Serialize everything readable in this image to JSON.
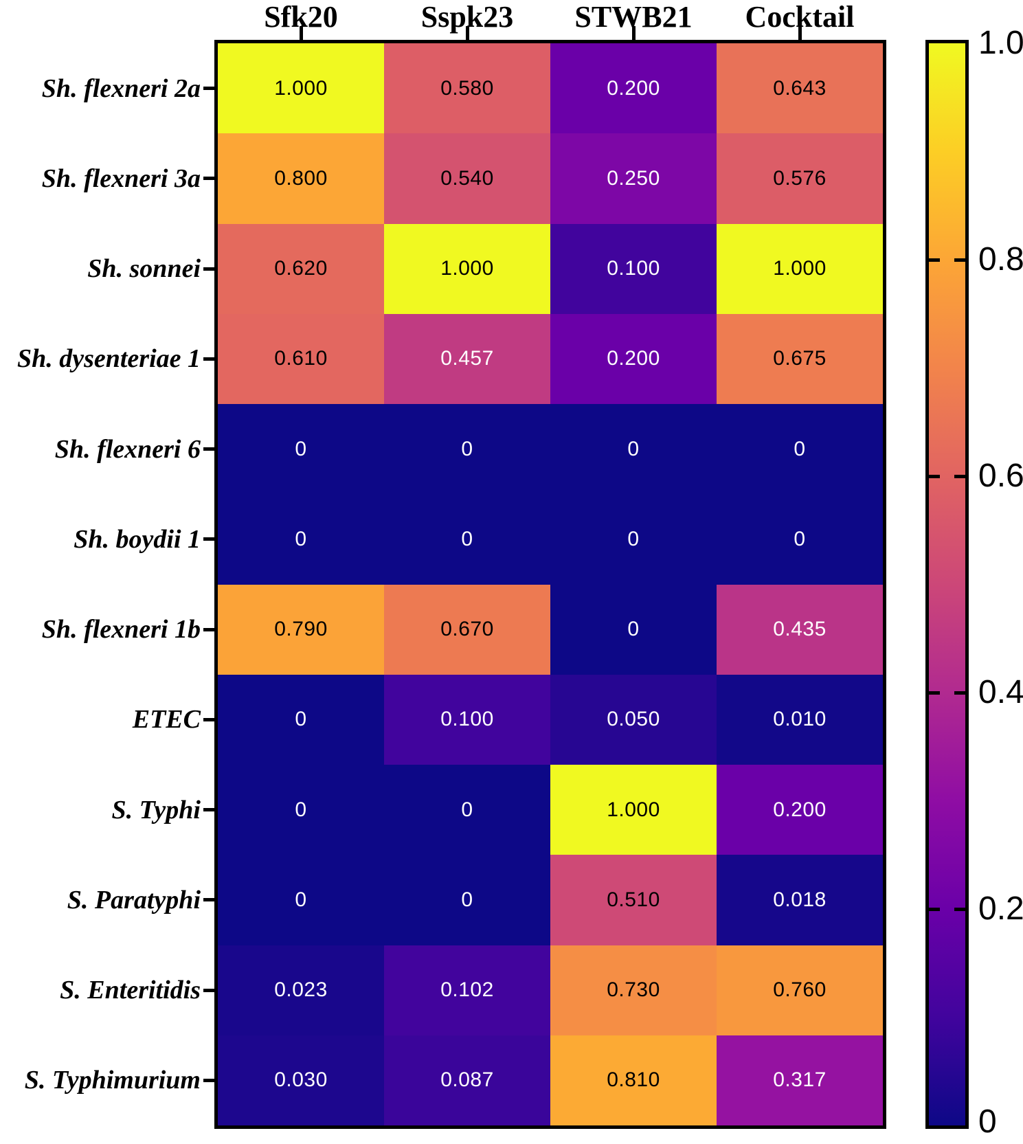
{
  "figure": {
    "description": "Heatmap of phage lytic efficiency against bacterial strains"
  },
  "chart_data": {
    "type": "heatmap",
    "title": "",
    "columns": [
      "Sfk20",
      "Sspk23",
      "STWB21",
      "Cocktail"
    ],
    "rows": [
      "Sh. flexneri 2a",
      "Sh. flexneri 3a",
      "Sh. sonnei",
      "Sh. dysenteriae 1",
      "Sh. flexneri 6",
      "Sh. boydii 1",
      "Sh. flexneri 1b",
      "ETEC",
      "S. Typhi",
      "S. Paratyphi",
      "S. Enteritidis",
      "S. Typhimurium"
    ],
    "values": [
      [
        1.0,
        0.58,
        0.2,
        0.643
      ],
      [
        0.8,
        0.54,
        0.25,
        0.576
      ],
      [
        0.62,
        1.0,
        0.1,
        1.0
      ],
      [
        0.61,
        0.457,
        0.2,
        0.675
      ],
      [
        0,
        0,
        0,
        0
      ],
      [
        0,
        0,
        0,
        0
      ],
      [
        0.79,
        0.67,
        0,
        0.435
      ],
      [
        0,
        0.1,
        0.05,
        0.01
      ],
      [
        0,
        0,
        1.0,
        0.2
      ],
      [
        0,
        0,
        0.51,
        0.018
      ],
      [
        0.023,
        0.102,
        0.73,
        0.76
      ],
      [
        0.03,
        0.087,
        0.81,
        0.317
      ]
    ],
    "cell_labels": [
      [
        "1.000",
        "0.580",
        "0.200",
        "0.643"
      ],
      [
        "0.800",
        "0.540",
        "0.250",
        "0.576"
      ],
      [
        "0.620",
        "1.000",
        "0.100",
        "1.000"
      ],
      [
        "0.610",
        "0.457",
        "0.200",
        "0.675"
      ],
      [
        "0",
        "0",
        "0",
        "0"
      ],
      [
        "0",
        "0",
        "0",
        "0"
      ],
      [
        "0.790",
        "0.670",
        "0",
        "0.435"
      ],
      [
        "0",
        "0.100",
        "0.050",
        "0.010"
      ],
      [
        "0",
        "0",
        "1.000",
        "0.200"
      ],
      [
        "0",
        "0",
        "0.510",
        "0.018"
      ],
      [
        "0.023",
        "0.102",
        "0.730",
        "0.760"
      ],
      [
        "0.030",
        "0.087",
        "0.810",
        "0.317"
      ]
    ],
    "value_range": [
      0,
      1
    ],
    "colormap": "plasma",
    "grid": false,
    "colorbar": {
      "position": "right",
      "ticks": [
        {
          "label": "1.0",
          "value": 1.0
        },
        {
          "label": "0.8",
          "value": 0.8
        },
        {
          "label": "0.6",
          "value": 0.6
        },
        {
          "label": "0.4",
          "value": 0.4
        },
        {
          "label": "0.2",
          "value": 0.2
        },
        {
          "label": "0",
          "value": 0.0
        }
      ]
    }
  },
  "colors": {
    "plasma_stops": [
      "#0d0887",
      "#41049d",
      "#6a00a8",
      "#8f0da4",
      "#b12a90",
      "#cc4778",
      "#e16462",
      "#f2844b",
      "#fca636",
      "#fcce25",
      "#f0f921"
    ],
    "border": "#000000",
    "background": "#ffffff",
    "cell_text_dark": "#000000",
    "cell_text_light": "#ffffff"
  }
}
